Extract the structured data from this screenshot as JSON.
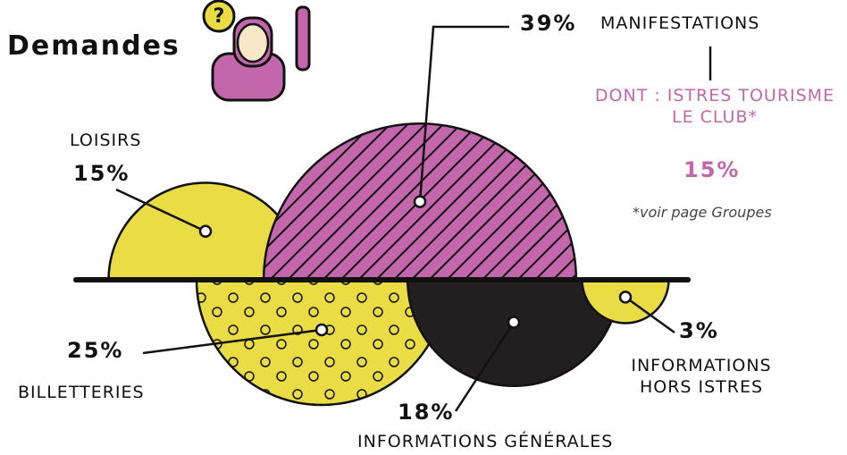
{
  "chart_data": {
    "type": "semicircle",
    "title": "Demandes",
    "categories": [
      "LOISIRS",
      "MANIFESTATIONS",
      "BILLETTERIES",
      "INFORMATIONS GÉNÉRALES",
      "INFORMATIONS HORS ISTRES"
    ],
    "values": [
      15,
      39,
      25,
      18,
      3
    ],
    "value_labels": [
      "15%",
      "39%",
      "25%",
      "18%",
      "3%"
    ],
    "colors": [
      "#e9dc45",
      "#c466ab",
      "#e9dc45",
      "#231f20",
      "#e9dc45"
    ],
    "patterns": [
      "none",
      "hatch",
      "dots",
      "none",
      "none"
    ],
    "sides": [
      "up",
      "up",
      "down",
      "down",
      "down"
    ],
    "sub_note": {
      "text": "DONT : ISTRES TOURISME LE CLUB*",
      "value": 15,
      "value_label": "15%"
    },
    "footnote": "*voir page Groupes"
  }
}
